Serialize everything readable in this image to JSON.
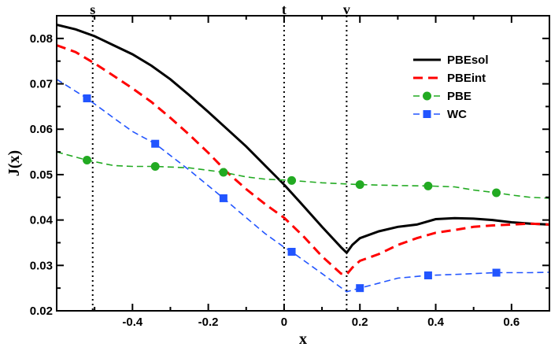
{
  "chart_data": {
    "type": "line",
    "xlabel": "x",
    "ylabel": "J(x)",
    "xlim": [
      -0.6,
      0.7
    ],
    "ylim": [
      0.02,
      0.085
    ],
    "xticks": [
      -0.4,
      -0.2,
      0,
      0.2,
      0.4,
      0.6
    ],
    "xtick_labels": [
      "-0.4",
      "-0.2",
      "0",
      "0.2",
      "0.4",
      "0.6"
    ],
    "yticks": [
      0.02,
      0.03,
      0.04,
      0.05,
      0.06,
      0.07,
      0.08
    ],
    "ytick_labels": [
      "0.02",
      "0.03",
      "0.04",
      "0.05",
      "0.06",
      "0.07",
      "0.08"
    ],
    "grid": false,
    "legend_position": "top-right",
    "vertical_lines": [
      {
        "label": "s",
        "x": -0.505
      },
      {
        "label": "t",
        "x": 0.0
      },
      {
        "label": "v",
        "x": 0.165
      }
    ],
    "series": [
      {
        "name": "PBEsol",
        "color": "#000000",
        "style": "solid",
        "marker": "none",
        "x": [
          -0.6,
          -0.55,
          -0.5,
          -0.45,
          -0.4,
          -0.35,
          -0.3,
          -0.25,
          -0.2,
          -0.15,
          -0.1,
          -0.05,
          0.0,
          0.05,
          0.1,
          0.15,
          0.165,
          0.18,
          0.2,
          0.25,
          0.3,
          0.35,
          0.4,
          0.45,
          0.5,
          0.55,
          0.6,
          0.65,
          0.7
        ],
        "y": [
          0.083,
          0.082,
          0.0805,
          0.0785,
          0.0765,
          0.074,
          0.071,
          0.0675,
          0.0638,
          0.06,
          0.0562,
          0.052,
          0.0478,
          0.0432,
          0.0385,
          0.034,
          0.0328,
          0.0345,
          0.036,
          0.0375,
          0.0385,
          0.039,
          0.0402,
          0.0404,
          0.0403,
          0.04,
          0.0395,
          0.0392,
          0.039
        ]
      },
      {
        "name": "PBEint",
        "color": "#ff0000",
        "style": "dashed",
        "marker": "none",
        "x": [
          -0.6,
          -0.55,
          -0.5,
          -0.45,
          -0.4,
          -0.35,
          -0.3,
          -0.25,
          -0.2,
          -0.15,
          -0.1,
          -0.05,
          0.0,
          0.05,
          0.1,
          0.15,
          0.165,
          0.18,
          0.2,
          0.25,
          0.3,
          0.35,
          0.4,
          0.45,
          0.5,
          0.55,
          0.6,
          0.65,
          0.7
        ],
        "y": [
          0.0785,
          0.077,
          0.0745,
          0.0718,
          0.069,
          0.066,
          0.0625,
          0.0588,
          0.0548,
          0.0505,
          0.0468,
          0.0435,
          0.0405,
          0.0365,
          0.032,
          0.0282,
          0.028,
          0.0295,
          0.031,
          0.0325,
          0.0345,
          0.036,
          0.0372,
          0.0378,
          0.0385,
          0.0388,
          0.039,
          0.0392,
          0.039
        ]
      },
      {
        "name": "PBE",
        "color": "#22aa22",
        "style": "dashed",
        "marker": "circle",
        "x": [
          -0.6,
          -0.52,
          -0.45,
          -0.4,
          -0.34,
          -0.25,
          -0.16,
          -0.1,
          -0.05,
          0.0,
          0.02,
          0.1,
          0.2,
          0.3,
          0.38,
          0.45,
          0.5,
          0.56,
          0.6,
          0.65,
          0.7
        ],
        "y": [
          0.055,
          0.0532,
          0.052,
          0.0518,
          0.0518,
          0.0515,
          0.0505,
          0.0495,
          0.049,
          0.0488,
          0.0487,
          0.0482,
          0.0478,
          0.0476,
          0.0475,
          0.0473,
          0.0466,
          0.046,
          0.0455,
          0.045,
          0.0448
        ]
      },
      {
        "name": "WC",
        "color": "#2255ff",
        "style": "dashed",
        "marker": "square",
        "x": [
          -0.6,
          -0.52,
          -0.45,
          -0.4,
          -0.34,
          -0.25,
          -0.16,
          -0.1,
          -0.05,
          0.0,
          0.02,
          0.1,
          0.165,
          0.2,
          0.3,
          0.38,
          0.45,
          0.5,
          0.56,
          0.6,
          0.65,
          0.7
        ],
        "y": [
          0.071,
          0.0668,
          0.0625,
          0.0595,
          0.0568,
          0.051,
          0.0448,
          0.0405,
          0.037,
          0.034,
          0.033,
          0.0282,
          0.0242,
          0.025,
          0.0272,
          0.0278,
          0.028,
          0.0282,
          0.0284,
          0.0284,
          0.0284,
          0.0285
        ]
      }
    ],
    "markers": {
      "PBE": {
        "x": [
          -0.52,
          -0.34,
          -0.16,
          0.02,
          0.2,
          0.38,
          0.56
        ],
        "y": [
          0.0532,
          0.0518,
          0.0505,
          0.0487,
          0.0478,
          0.0475,
          0.046
        ]
      },
      "WC": {
        "x": [
          -0.52,
          -0.34,
          -0.16,
          0.02,
          0.2,
          0.38,
          0.56
        ],
        "y": [
          0.0668,
          0.0568,
          0.0448,
          0.033,
          0.025,
          0.0278,
          0.0284
        ]
      }
    }
  }
}
